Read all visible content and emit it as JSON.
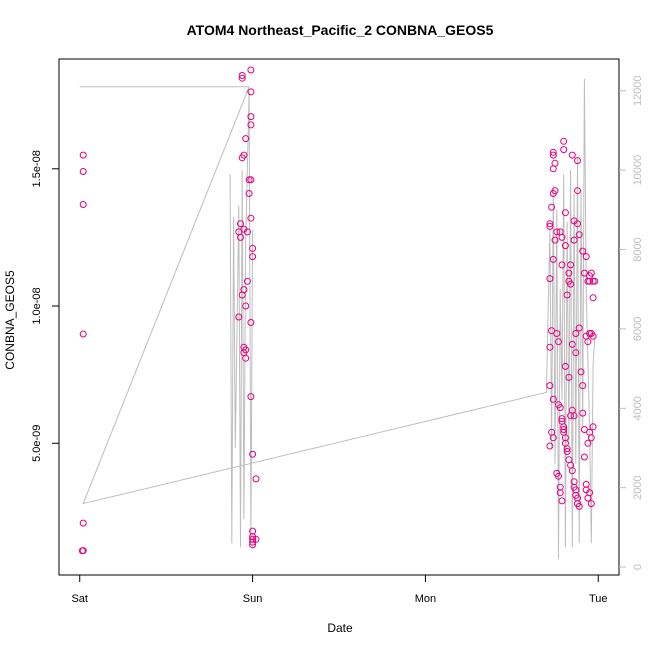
{
  "chart_data": {
    "type": "scatter",
    "title": "ATOM4 Northeast_Pacific_2 CONBNA_GEOS5",
    "xlabel": "Date",
    "ylabel": "CONBNA_GEOS5",
    "x_unit": "days since Sat 00:00",
    "x_ticks": [
      {
        "value": 0,
        "label": "Sat"
      },
      {
        "value": 1,
        "label": "Sun"
      },
      {
        "value": 2,
        "label": "Mon"
      },
      {
        "value": 3,
        "label": "Tue"
      }
    ],
    "xlim": [
      -0.12,
      3.12
    ],
    "ylim": [
      2e-10,
      1.9e-08
    ],
    "y_ticks": [
      {
        "value": 5e-09,
        "label": "5.0e-09"
      },
      {
        "value": 1e-08,
        "label": "1.0e-08"
      },
      {
        "value": 1.5e-08,
        "label": "1.5e-08"
      }
    ],
    "y2lim": [
      -200,
      12800
    ],
    "y2_ticks": [
      0,
      2000,
      4000,
      6000,
      8000,
      10000,
      12000
    ],
    "grid": false,
    "colors": {
      "points": "#e6007e",
      "line": "#bdbdbd",
      "axis": "#000000",
      "right_axis": "#bdbdbd"
    },
    "series": [
      {
        "kind": "points",
        "axis": "left",
        "points": [
          [
            0.02,
            1.55e-08
          ],
          [
            0.02,
            1.49e-08
          ],
          [
            0.02,
            1.37e-08
          ],
          [
            0.02,
            8.98e-09
          ],
          [
            0.02,
            2.09e-09
          ],
          [
            0.02,
            1.09e-09
          ],
          [
            0.015,
            1.08e-09
          ],
          [
            0.94,
            1.84e-08
          ],
          [
            0.94,
            1.83e-08
          ],
          [
            0.96,
            1.61e-08
          ],
          [
            0.95,
            1.55e-08
          ],
          [
            0.94,
            1.54e-08
          ],
          [
            0.98,
            1.46e-08
          ],
          [
            0.99,
            1.46e-08
          ],
          [
            0.98,
            1.41e-08
          ],
          [
            0.99,
            1.32e-08
          ],
          [
            0.93,
            1.3e-08
          ],
          [
            0.95,
            1.28e-08
          ],
          [
            0.92,
            1.27e-08
          ],
          [
            0.97,
            1.27e-08
          ],
          [
            0.93,
            1.25e-08
          ],
          [
            1.0,
            1.21e-08
          ],
          [
            1.0,
            1.18e-08
          ],
          [
            0.97,
            1.09e-08
          ],
          [
            0.95,
            1.06e-08
          ],
          [
            0.94,
            1.04e-08
          ],
          [
            0.96,
            1e-08
          ],
          [
            0.92,
            9.6e-09
          ],
          [
            0.99,
            9.4e-09
          ],
          [
            0.95,
            8.5e-09
          ],
          [
            0.96,
            8.4e-09
          ],
          [
            0.95,
            8.3e-09
          ],
          [
            0.96,
            8.1e-09
          ],
          [
            0.99,
            6.7e-09
          ],
          [
            1.0,
            4.6e-09
          ],
          [
            1.02,
            3.7e-09
          ],
          [
            0.99,
            1.86e-08
          ],
          [
            0.99,
            1.78e-08
          ],
          [
            0.99,
            1.69e-08
          ],
          [
            0.99,
            1.66e-08
          ],
          [
            1.0,
            1.8e-09
          ],
          [
            1.0,
            1.6e-09
          ],
          [
            1.0,
            1.5e-09
          ],
          [
            1.0,
            1.4e-09
          ],
          [
            1.0,
            1.3e-09
          ],
          [
            1.02,
            1.5e-09
          ],
          [
            2.72,
            1.3e-08
          ],
          [
            2.72,
            1.29e-08
          ],
          [
            2.74,
            1.56e-08
          ],
          [
            2.74,
            1.55e-08
          ],
          [
            2.75,
            1.52e-08
          ],
          [
            2.74,
            1.5e-08
          ],
          [
            2.74,
            1.41e-08
          ],
          [
            2.75,
            1.42e-08
          ],
          [
            2.73,
            1.36e-08
          ],
          [
            2.75,
            1.24e-08
          ],
          [
            2.76,
            1.27e-08
          ],
          [
            2.74,
            1.17e-08
          ],
          [
            2.72,
            1.1e-08
          ],
          [
            2.73,
            9.1e-09
          ],
          [
            2.72,
            8.5e-09
          ],
          [
            2.72,
            7.1e-09
          ],
          [
            2.73,
            5.4e-09
          ],
          [
            2.74,
            5.2e-09
          ],
          [
            2.72,
            4.9e-09
          ],
          [
            2.74,
            6.6e-09
          ],
          [
            2.76,
            9e-09
          ],
          [
            2.77,
            8.7e-09
          ],
          [
            2.78,
            1.27e-08
          ],
          [
            2.79,
            1.25e-08
          ],
          [
            2.79,
            1.15e-08
          ],
          [
            2.8,
            1.6e-08
          ],
          [
            2.8,
            1.57e-08
          ],
          [
            2.81,
            1.34e-08
          ],
          [
            2.81,
            1.22e-08
          ],
          [
            2.82,
            1.04e-08
          ],
          [
            2.83,
            1.12e-08
          ],
          [
            2.84,
            1.15e-08
          ],
          [
            2.85,
            1.55e-08
          ],
          [
            2.86,
            1.31e-08
          ],
          [
            2.86,
            1.24e-08
          ],
          [
            2.87,
            9e-09
          ],
          [
            2.88,
            1.53e-08
          ],
          [
            2.88,
            1.42e-08
          ],
          [
            2.88,
            1.3e-08
          ],
          [
            2.89,
            1.26e-08
          ],
          [
            2.91,
            1.2e-08
          ],
          [
            2.92,
            1.12e-08
          ],
          [
            2.93,
            1.18e-08
          ],
          [
            2.94,
            1.09e-08
          ],
          [
            2.95,
            1.11e-08
          ],
          [
            2.95,
            1.09e-08
          ],
          [
            2.96,
            1.12e-08
          ],
          [
            2.97,
            1.09e-08
          ],
          [
            2.98,
            1.09e-08
          ],
          [
            2.97,
            1.03e-08
          ],
          [
            2.77,
            6.4e-09
          ],
          [
            2.78,
            6.3e-09
          ],
          [
            2.79,
            5.9e-09
          ],
          [
            2.79,
            5.8e-09
          ],
          [
            2.8,
            5.6e-09
          ],
          [
            2.8,
            5.4e-09
          ],
          [
            2.81,
            5.2e-09
          ],
          [
            2.81,
            5e-09
          ],
          [
            2.82,
            4.8e-09
          ],
          [
            2.82,
            4.7e-09
          ],
          [
            2.83,
            4.4e-09
          ],
          [
            2.84,
            4.2e-09
          ],
          [
            2.85,
            4e-09
          ],
          [
            2.86,
            3.6e-09
          ],
          [
            2.86,
            3.4e-09
          ],
          [
            2.87,
            3.3e-09
          ],
          [
            2.87,
            3.1e-09
          ],
          [
            2.88,
            3e-09
          ],
          [
            2.88,
            2.8e-09
          ],
          [
            2.89,
            2.7e-09
          ],
          [
            2.76,
            3.9e-09
          ],
          [
            2.77,
            3.8e-09
          ],
          [
            2.78,
            3.4e-09
          ],
          [
            2.78,
            3.2e-09
          ],
          [
            2.79,
            2.9e-09
          ],
          [
            2.8,
            5.5e-09
          ],
          [
            2.81,
            7.8e-09
          ],
          [
            2.83,
            7.4e-09
          ],
          [
            2.84,
            6e-09
          ],
          [
            2.85,
            8.6e-09
          ],
          [
            2.87,
            8.3e-09
          ],
          [
            2.89,
            9.2e-09
          ],
          [
            2.9,
            7.6e-09
          ],
          [
            2.91,
            7.1e-09
          ],
          [
            2.91,
            6.1e-09
          ],
          [
            2.92,
            5.5e-09
          ],
          [
            2.93,
            8.9e-09
          ],
          [
            2.94,
            8.7e-09
          ],
          [
            2.95,
            9e-09
          ],
          [
            2.96,
            9e-09
          ],
          [
            2.97,
            8.9e-09
          ],
          [
            2.93,
            3.5e-09
          ],
          [
            2.93,
            3.3e-09
          ],
          [
            2.94,
            3e-09
          ],
          [
            2.95,
            3.2e-09
          ],
          [
            2.96,
            2.8e-09
          ],
          [
            2.92,
            4.5e-09
          ],
          [
            2.94,
            5e-09
          ],
          [
            2.95,
            5.4e-09
          ],
          [
            2.96,
            5.2e-09
          ],
          [
            2.97,
            5.6e-09
          ],
          [
            2.85,
            6.2e-09
          ],
          [
            2.86,
            6e-09
          ],
          [
            2.83,
            1.09e-08
          ],
          [
            2.84,
            1.08e-08
          ]
        ]
      },
      {
        "kind": "line",
        "axis": "right",
        "points": [
          [
            0.0,
            12100
          ],
          [
            0.98,
            12100
          ],
          [
            0.02,
            1600
          ],
          [
            2.7,
            4400
          ],
          [
            2.72,
            8500
          ],
          [
            2.73,
            3000
          ],
          [
            2.74,
            9600
          ],
          [
            2.75,
            2600
          ],
          [
            2.76,
            9000
          ],
          [
            2.77,
            200
          ],
          [
            2.78,
            7000
          ],
          [
            2.79,
            4200
          ],
          [
            2.8,
            9900
          ],
          [
            2.81,
            500
          ],
          [
            2.82,
            8700
          ],
          [
            2.83,
            3100
          ],
          [
            2.84,
            10000
          ],
          [
            2.85,
            500
          ],
          [
            2.86,
            9400
          ],
          [
            2.87,
            2600
          ],
          [
            2.88,
            10300
          ],
          [
            2.89,
            600
          ],
          [
            2.9,
            9500
          ],
          [
            2.91,
            3500
          ],
          [
            2.92,
            12300
          ],
          [
            2.93,
            7000
          ],
          [
            2.94,
            5200
          ],
          [
            2.95,
            3500
          ],
          [
            2.96,
            600
          ],
          [
            2.97,
            5100
          ],
          [
            2.98,
            5800
          ]
        ],
        "extra": [
          [
            0.87,
            9900
          ],
          [
            0.88,
            600
          ],
          [
            0.89,
            8800
          ],
          [
            0.9,
            3000
          ],
          [
            0.92,
            9100
          ],
          [
            0.93,
            500
          ],
          [
            0.94,
            10000
          ],
          [
            0.95,
            1200
          ],
          [
            0.96,
            8200
          ],
          [
            0.98,
            12000
          ],
          [
            0.99,
            700
          ],
          [
            1.0,
            8500
          ]
        ]
      }
    ]
  }
}
